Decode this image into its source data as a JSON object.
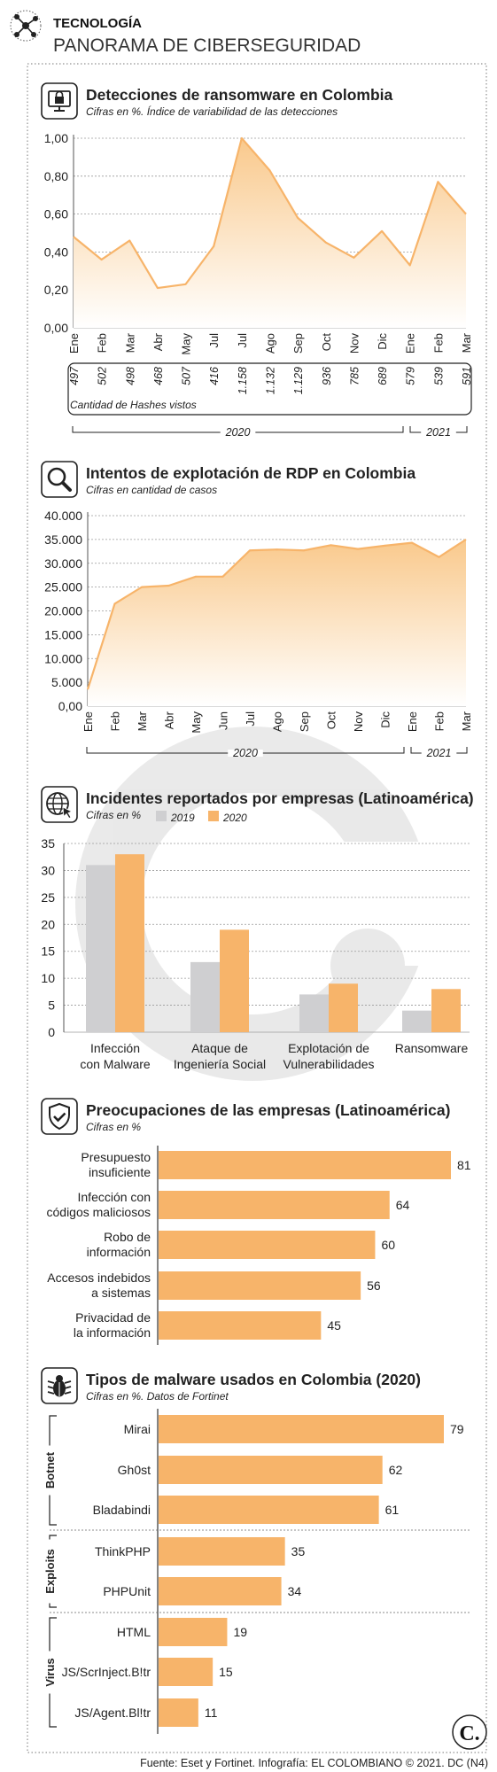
{
  "header": {
    "section": "TECNOLOGÍA",
    "title": "PANORAMA DE CIBERSEGURIDAD",
    "icon": "network-hub-icon"
  },
  "footer": {
    "source": "Fuente: Eset y Fortinet. Infografía: EL COLOMBIANO © 2021. DC (N4)",
    "logo_text": "C."
  },
  "colors": {
    "orange": "#F7B46A",
    "orange_light": "#FBE1BC",
    "gray_bar": "#CFCFD1",
    "text": "#222222",
    "grid": "#9a9a9a"
  },
  "chart_data": [
    {
      "type": "area",
      "title": "Detecciones de ransomware en Colombia",
      "subtitle": "Cifras en %. Índice de variabilidad de las detecciones",
      "icon": "computer-lock-icon",
      "categories": [
        "Ene",
        "Feb",
        "Mar",
        "Abr",
        "May",
        "Jul",
        "Jul",
        "Ago",
        "Sep",
        "Oct",
        "Nov",
        "Dic",
        "Ene",
        "Feb",
        "Mar"
      ],
      "values": [
        0.48,
        0.36,
        0.46,
        0.21,
        0.23,
        0.43,
        1.0,
        0.83,
        0.58,
        0.45,
        0.37,
        0.51,
        0.33,
        0.77,
        0.6
      ],
      "yticks": [
        "0,00",
        "0,20",
        "0,40",
        "0,60",
        "0,80",
        "1,00"
      ],
      "ylim": [
        0,
        1
      ],
      "hashes_label": "Cantidad de Hashes vistos",
      "hashes": [
        "497",
        "502",
        "498",
        "468",
        "507",
        "416",
        "1.158",
        "1.132",
        "1.129",
        "936",
        "785",
        "689",
        "579",
        "539",
        "591"
      ],
      "years": [
        {
          "label": "2020"
        },
        {
          "label": "2021"
        }
      ],
      "grid": true
    },
    {
      "type": "area",
      "title": "Intentos de explotación de RDP en Colombia",
      "subtitle": "Cifras en cantidad de casos",
      "icon": "magnifier-icon",
      "categories": [
        "Ene",
        "Feb",
        "Mar",
        "Abr",
        "May",
        "Jun",
        "Jul",
        "Ago",
        "Sep",
        "Oct",
        "Nov",
        "Dic",
        "Ene",
        "Feb",
        "Mar"
      ],
      "values": [
        3500,
        21500,
        25000,
        25300,
        27200,
        27200,
        32700,
        32900,
        32700,
        33800,
        33000,
        33700,
        34300,
        31300,
        35000
      ],
      "yticks": [
        "0,00",
        "5.000",
        "10.000",
        "15.000",
        "20.000",
        "25.000",
        "30.000",
        "35.000",
        "40.000"
      ],
      "ylim": [
        0,
        40000
      ],
      "years": [
        {
          "label": "2020"
        },
        {
          "label": "2021"
        }
      ],
      "grid": true
    },
    {
      "type": "bar",
      "title": "Incidentes reportados por empresas (Latinoamérica)",
      "subtitle": "Cifras en %",
      "icon": "globe-cursor-icon",
      "legend": [
        "2019",
        "2020"
      ],
      "categories": [
        "Infección\ncon Malware",
        "Ataque de\nIngeniería Social",
        "Explotación de\nVulnerabilidades",
        "Ransomware"
      ],
      "series": [
        {
          "name": "2019",
          "values": [
            31,
            13,
            7,
            4
          ]
        },
        {
          "name": "2020",
          "values": [
            33,
            19,
            9,
            8
          ]
        }
      ],
      "yticks": [
        "0",
        "5",
        "10",
        "15",
        "20",
        "25",
        "30",
        "35"
      ],
      "ylim": [
        0,
        35
      ]
    },
    {
      "type": "bar",
      "orientation": "horizontal",
      "title": "Preocupaciones de las empresas (Latinoamérica)",
      "subtitle": "Cifras en %",
      "icon": "shield-check-icon",
      "categories": [
        "Presupuesto\ninsuficiente",
        "Infección con\ncódigos maliciosos",
        "Robo de\ninformación",
        "Accesos indebidos\na sistemas",
        "Privacidad de\nla información"
      ],
      "values": [
        81,
        64,
        60,
        56,
        45
      ],
      "xlim": [
        0,
        81
      ]
    },
    {
      "type": "bar",
      "orientation": "horizontal",
      "title": "Tipos de malware usados en Colombia (2020)",
      "subtitle": "Cifras en %. Datos de Fortinet",
      "icon": "bug-icon",
      "groups": [
        {
          "label": "Botnet",
          "items": [
            {
              "name": "Mirai",
              "value": 79
            },
            {
              "name": "Gh0st",
              "value": 62
            },
            {
              "name": "Bladabindi",
              "value": 61
            }
          ]
        },
        {
          "label": "Exploits",
          "items": [
            {
              "name": "ThinkPHP",
              "value": 35
            },
            {
              "name": "PHPUnit",
              "value": 34
            }
          ]
        },
        {
          "label": "Virus",
          "items": [
            {
              "name": "HTML",
              "value": 19
            },
            {
              "name": "JS/ScrInject.B!tr",
              "value": 15
            },
            {
              "name": "JS/Agent.Bl!tr",
              "value": 11
            }
          ]
        }
      ],
      "xlim": [
        0,
        79
      ]
    }
  ]
}
